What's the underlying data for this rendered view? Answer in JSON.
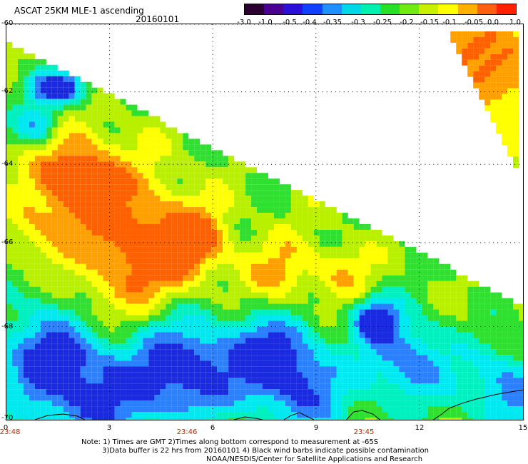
{
  "header": {
    "title": "ASCAT 25KM MLE-1 ascending",
    "date": "20160101"
  },
  "colorbar": {
    "labels": [
      "-3.0",
      "-1.0",
      "-0.5",
      "-0.4",
      "-0.35",
      "-0.3",
      "-0.25",
      "-0.2",
      "-0.15",
      "-0.1",
      "-0.05",
      "0.0",
      "1.0"
    ],
    "colors": [
      "#2b0030",
      "#4a0090",
      "#2a10d8",
      "#1040ff",
      "#1e90ff",
      "#00d8e8",
      "#00f0b0",
      "#28e028",
      "#70ea10",
      "#c8f000",
      "#ffff00",
      "#ffb000",
      "#ff6010",
      "#ff2000"
    ]
  },
  "axes": {
    "lat_labels": [
      "-60",
      "-62",
      "-64",
      "-66",
      "-68",
      "-70"
    ],
    "lon_labels": [
      "0",
      "3",
      "6",
      "9",
      "12",
      "15"
    ],
    "time_labels": [
      "23:48",
      "23:46",
      "23:45"
    ]
  },
  "notes": {
    "line1": "Note: 1) Times are GMT 2)Times along bottom correspond to measurement at -65S",
    "line2": "3)Data buffer is 22 hrs from 20160101 4) Black wind barbs indicate possible contamination",
    "line3": "NOAA/NESDIS/Center for Satellite Applications and Research"
  },
  "palette": {
    "deep_blue": "#1a2ae0",
    "blue": "#2a80ff",
    "cyan": "#00e8f0",
    "aqua": "#00f0c0",
    "green": "#30e030",
    "yellow_green": "#b8f000",
    "yellow": "#ffff00",
    "orange": "#ffa000",
    "red_orange": "#ff6000"
  }
}
